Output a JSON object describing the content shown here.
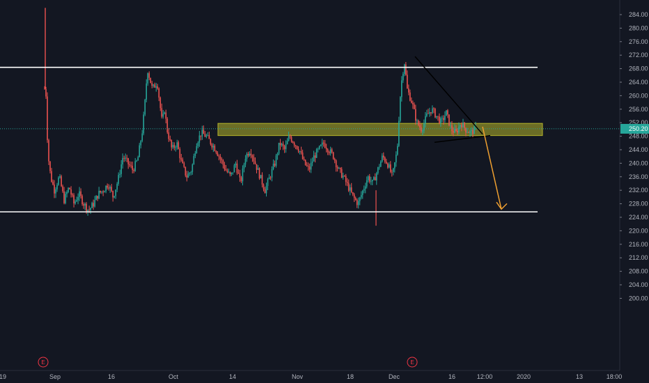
{
  "chart_data": {
    "type": "candlestick",
    "title": "",
    "grid": false,
    "y_axis": {
      "position": "right",
      "ticks": [
        "284.00",
        "280.00",
        "276.00",
        "272.00",
        "268.00",
        "264.00",
        "260.00",
        "256.00",
        "252.00",
        "248.00",
        "244.00",
        "240.00",
        "236.00",
        "232.00",
        "228.00",
        "224.00",
        "220.00",
        "216.00",
        "212.00",
        "208.00",
        "204.00",
        "200.00"
      ],
      "range": [
        199.5,
        286.5
      ]
    },
    "x_axis": {
      "ticks": [
        "19",
        "Sep",
        "16",
        "Oct",
        "14",
        "Nov",
        "18",
        "Dec",
        "16",
        "12:00",
        "2020",
        "13",
        "18:00"
      ]
    },
    "last_price": {
      "label": "250.20",
      "value": 250.2,
      "color": "#26a69a"
    },
    "series": [
      {
        "type": "candles",
        "up_color": "#26a69a",
        "down_color": "#ef5350",
        "path": [
          [
            0.0,
            262
          ],
          [
            0.3,
            286
          ],
          [
            0.5,
            262
          ],
          [
            1.0,
            250
          ],
          [
            1.5,
            242
          ],
          [
            2.5,
            236
          ],
          [
            4,
            232
          ],
          [
            6,
            236
          ],
          [
            8,
            229
          ],
          [
            10,
            233
          ],
          [
            12,
            228
          ],
          [
            14,
            231
          ],
          [
            16,
            228
          ],
          [
            18,
            226
          ],
          [
            20,
            228
          ],
          [
            22,
            231
          ],
          [
            24,
            232
          ],
          [
            26,
            234
          ],
          [
            28,
            230
          ],
          [
            30,
            235
          ],
          [
            32,
            242
          ],
          [
            34,
            240
          ],
          [
            36,
            238
          ],
          [
            38,
            241
          ],
          [
            40,
            250
          ],
          [
            41,
            258
          ],
          [
            42,
            268
          ],
          [
            44,
            262
          ],
          [
            46,
            264
          ],
          [
            47,
            258
          ],
          [
            48,
            252
          ],
          [
            49,
            256
          ],
          [
            50,
            250
          ],
          [
            52,
            244
          ],
          [
            54,
            246
          ],
          [
            56,
            240
          ],
          [
            58,
            236
          ],
          [
            60,
            238
          ],
          [
            62,
            246
          ],
          [
            64,
            249
          ],
          [
            66,
            248
          ],
          [
            68,
            246
          ],
          [
            70,
            244
          ],
          [
            72,
            241
          ],
          [
            74,
            238
          ],
          [
            76,
            236
          ],
          [
            78,
            240
          ],
          [
            80,
            234
          ],
          [
            82,
            242
          ],
          [
            84,
            244
          ],
          [
            86,
            240
          ],
          [
            88,
            236
          ],
          [
            90,
            232
          ],
          [
            92,
            236
          ],
          [
            94,
            240
          ],
          [
            96,
            246
          ],
          [
            98,
            244
          ],
          [
            100,
            248
          ],
          [
            102,
            246
          ],
          [
            104,
            244
          ],
          [
            106,
            240
          ],
          [
            108,
            238
          ],
          [
            110,
            242
          ],
          [
            112,
            244
          ],
          [
            114,
            246
          ],
          [
            116,
            244
          ],
          [
            118,
            242
          ],
          [
            120,
            238
          ],
          [
            122,
            236
          ],
          [
            124,
            233
          ],
          [
            126,
            230
          ],
          [
            128,
            228
          ],
          [
            130,
            232
          ],
          [
            132,
            236
          ],
          [
            134,
            234
          ],
          [
            136,
            238
          ],
          [
            138,
            242
          ],
          [
            140,
            240
          ],
          [
            142,
            236
          ],
          [
            144,
            244
          ],
          [
            145,
            258
          ],
          [
            146,
            266
          ],
          [
            147,
            270
          ],
          [
            148,
            262
          ],
          [
            150,
            258
          ],
          [
            152,
            252
          ],
          [
            154,
            250
          ],
          [
            156,
            254
          ],
          [
            158,
            256
          ],
          [
            160,
            254
          ],
          [
            162,
            252
          ],
          [
            164,
            255
          ],
          [
            166,
            250
          ],
          [
            168,
            249
          ],
          [
            170,
            252
          ],
          [
            172,
            250
          ],
          [
            174,
            249
          ],
          [
            176,
            250.2
          ]
        ]
      }
    ],
    "annotations": [
      {
        "type": "horizontal_segment",
        "name": "resistance-line",
        "y": 268.4,
        "color": "#ffffff"
      },
      {
        "type": "horizontal_segment",
        "name": "support-line",
        "y": 225.6,
        "color": "#ffffff"
      },
      {
        "type": "zone",
        "name": "highlight-zone",
        "y_range": [
          248.2,
          251.8
        ],
        "color": "#b5b42a"
      },
      {
        "type": "trendline",
        "name": "descending-trendline",
        "color": "#000000"
      },
      {
        "type": "trendline",
        "name": "ascending-trendline",
        "color": "#000000"
      },
      {
        "type": "arrow",
        "name": "projection-arrow",
        "target_price": 226.0,
        "color": "#f0a030"
      }
    ],
    "event_markers": [
      {
        "label": "E",
        "after_tick": "19"
      },
      {
        "label": "E",
        "after_tick": "Dec"
      }
    ]
  }
}
